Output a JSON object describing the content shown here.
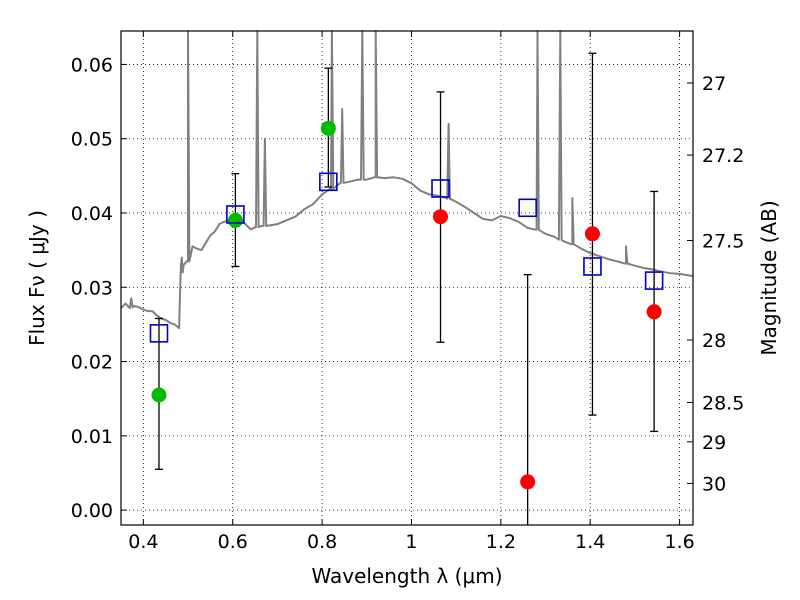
{
  "chart_data": {
    "type": "scatter",
    "title": "",
    "xlabel": "Wavelength  λ (μm)",
    "ylabel": "Flux  Fν  ( μJy )",
    "y2label": "Magnitude (AB)",
    "xlim": [
      0.35,
      1.63
    ],
    "ylim": [
      -0.002,
      0.0645
    ],
    "grid": true,
    "x_ticks": [
      0.4,
      0.6,
      0.8,
      1.0,
      1.2,
      1.4,
      1.6
    ],
    "x_tick_labels": [
      "0.4",
      "0.6",
      "0.8",
      "1",
      "1.2",
      "1.4",
      "1.6"
    ],
    "y_ticks": [
      0.0,
      0.01,
      0.02,
      0.03,
      0.04,
      0.05,
      0.06
    ],
    "y_tick_labels": [
      "0.00",
      "0.01",
      "0.02",
      "0.03",
      "0.04",
      "0.05",
      "0.06"
    ],
    "y2_ticks": [
      {
        "label": "27",
        "flux": 0.0575
      },
      {
        "label": "27.2",
        "flux": 0.0478
      },
      {
        "label": "27.5",
        "flux": 0.0363
      },
      {
        "label": "28",
        "flux": 0.0229
      },
      {
        "label": "28.5",
        "flux": 0.0145
      },
      {
        "label": "29",
        "flux": 0.0092
      },
      {
        "label": "30",
        "flux": 0.0036
      }
    ],
    "series": [
      {
        "name": "detections",
        "marker": "filled-circle",
        "color": "#00bb00",
        "x": [
          0.435,
          0.606,
          0.814
        ],
        "y": [
          0.0155,
          0.039,
          0.0514
        ],
        "err_low": [
          0.0055,
          0.0328,
          0.0435
        ],
        "err_high": [
          0.0258,
          0.0453,
          0.0595
        ]
      },
      {
        "name": "upper limits",
        "marker": "filled-circle",
        "color": "#ff0000",
        "x": [
          1.065,
          1.26,
          1.405,
          1.543
        ],
        "y": [
          0.0395,
          0.0038,
          0.0372,
          0.0267
        ],
        "err_low": [
          0.0226,
          -0.002,
          0.0128,
          0.0106
        ],
        "err_high": [
          0.0563,
          0.0317,
          0.0615,
          0.0429
        ]
      },
      {
        "name": "model photometry",
        "marker": "open-square",
        "color": "#0000cc",
        "x": [
          0.435,
          0.606,
          0.814,
          1.065,
          1.26,
          1.405,
          1.543
        ],
        "y": [
          0.0238,
          0.0398,
          0.0442,
          0.0433,
          0.0407,
          0.0328,
          0.0309
        ]
      },
      {
        "name": "model spectrum",
        "marker": "line",
        "color": "#808080",
        "x": [
          0.35,
          0.36,
          0.37,
          0.38,
          0.39,
          0.4,
          0.41,
          0.42,
          0.43,
          0.44,
          0.45,
          0.46,
          0.47,
          0.48,
          0.482,
          0.484,
          0.486,
          0.488,
          0.49,
          0.5,
          0.51,
          0.52,
          0.53,
          0.54,
          0.55,
          0.56,
          0.57,
          0.58,
          0.59,
          0.6,
          0.62,
          0.64,
          0.66,
          0.68,
          0.7,
          0.72,
          0.74,
          0.76,
          0.78,
          0.8,
          0.82,
          0.84,
          0.86,
          0.88,
          0.9,
          0.92,
          0.94,
          0.96,
          0.98,
          1.0,
          1.02,
          1.04,
          1.06,
          1.08,
          1.1,
          1.12,
          1.14,
          1.16,
          1.18,
          1.2,
          1.22,
          1.24,
          1.26,
          1.28,
          1.3,
          1.32,
          1.34,
          1.36,
          1.38,
          1.4,
          1.42,
          1.44,
          1.46,
          1.48,
          1.5,
          1.52,
          1.54,
          1.56,
          1.58,
          1.6,
          1.63
        ],
        "y": [
          0.0272,
          0.0278,
          0.0272,
          0.0275,
          0.0273,
          0.027,
          0.0268,
          0.0268,
          0.0262,
          0.0258,
          0.0256,
          0.0252,
          0.025,
          0.0245,
          0.029,
          0.033,
          0.034,
          0.032,
          0.033,
          0.0335,
          0.0355,
          0.0352,
          0.035,
          0.036,
          0.037,
          0.0375,
          0.0385,
          0.0388,
          0.039,
          0.0392,
          0.039,
          0.0378,
          0.0382,
          0.0383,
          0.0385,
          0.039,
          0.0395,
          0.0405,
          0.0412,
          0.0425,
          0.0432,
          0.044,
          0.0442,
          0.0445,
          0.0445,
          0.0448,
          0.0447,
          0.0448,
          0.0446,
          0.044,
          0.043,
          0.0425,
          0.0423,
          0.042,
          0.0415,
          0.0408,
          0.04,
          0.0392,
          0.039,
          0.0396,
          0.0393,
          0.0388,
          0.038,
          0.0378,
          0.0372,
          0.0368,
          0.0362,
          0.0358,
          0.0352,
          0.0346,
          0.0342,
          0.0338,
          0.0335,
          0.0332,
          0.0329,
          0.0326,
          0.0324,
          0.0321,
          0.0319,
          0.0318,
          0.0315
        ]
      }
    ],
    "spectral_lines": [
      {
        "x": 0.373,
        "peak": 0.0285
      },
      {
        "x": 0.5,
        "peak": 0.0645
      },
      {
        "x": 0.655,
        "peak": 0.0645
      },
      {
        "x": 0.672,
        "peak": 0.05
      },
      {
        "x": 0.822,
        "peak": 0.0645
      },
      {
        "x": 0.845,
        "peak": 0.054
      },
      {
        "x": 0.89,
        "peak": 0.0645
      },
      {
        "x": 0.92,
        "peak": 0.0645
      },
      {
        "x": 1.083,
        "peak": 0.052
      },
      {
        "x": 1.282,
        "peak": 0.0645
      },
      {
        "x": 1.333,
        "peak": 0.0645
      },
      {
        "x": 1.36,
        "peak": 0.042
      },
      {
        "x": 1.48,
        "peak": 0.0355
      }
    ]
  }
}
